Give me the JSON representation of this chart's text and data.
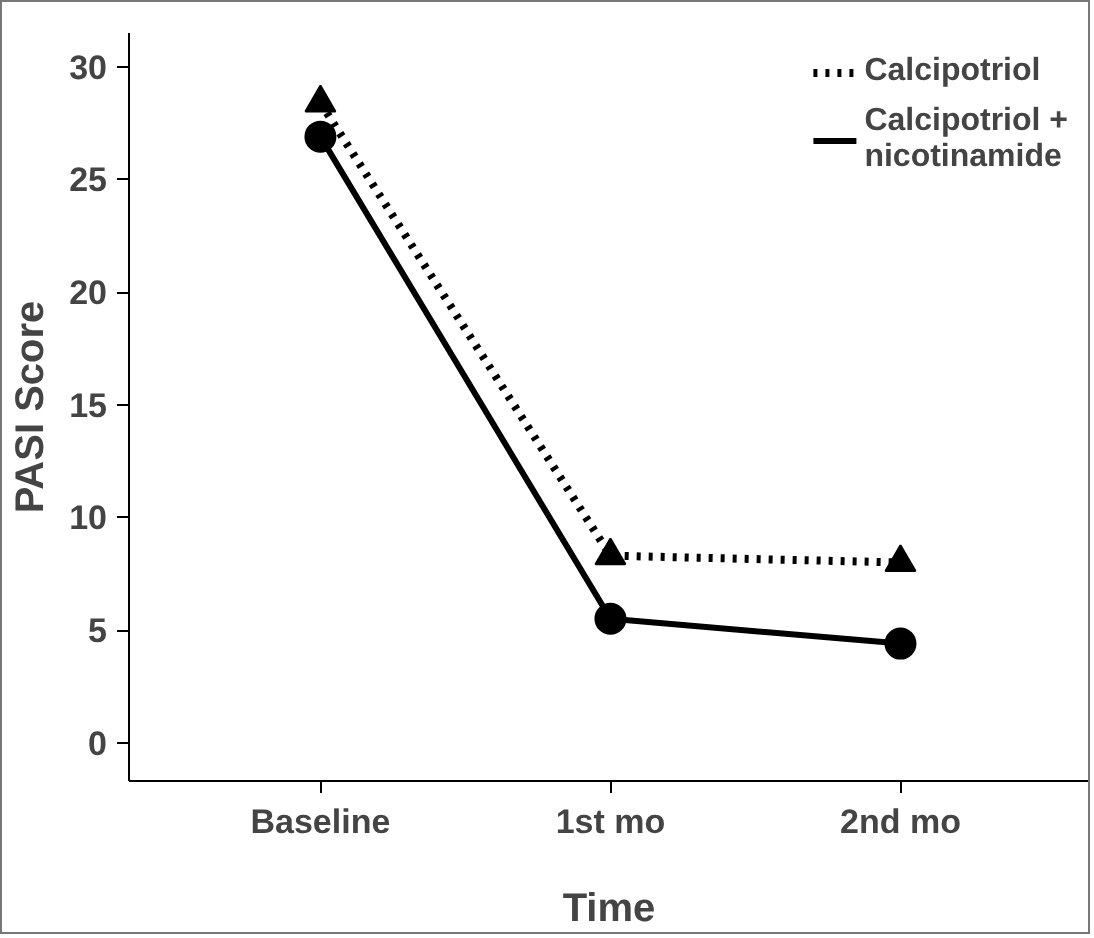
{
  "chart_data": {
    "type": "line",
    "xlabel": "Time",
    "ylabel": "PASI Score",
    "categories": [
      "Baseline",
      "1st mo",
      "2nd mo"
    ],
    "series": [
      {
        "name": "Calcipotriol",
        "color": "#000000",
        "values": [
          28.4,
          8.3,
          8.0
        ],
        "marker": "triangle",
        "line_style": "dotted"
      },
      {
        "name": "Calcipotriol + nicotinamide",
        "color": "#000000",
        "values": [
          26.9,
          5.5,
          4.4
        ],
        "marker": "circle",
        "line_style": "solid"
      }
    ],
    "ylim": [
      -1.7,
      31.5
    ],
    "yticks": [
      0,
      5,
      10,
      15,
      20,
      25,
      30
    ],
    "grid": false,
    "legend": "top right"
  }
}
